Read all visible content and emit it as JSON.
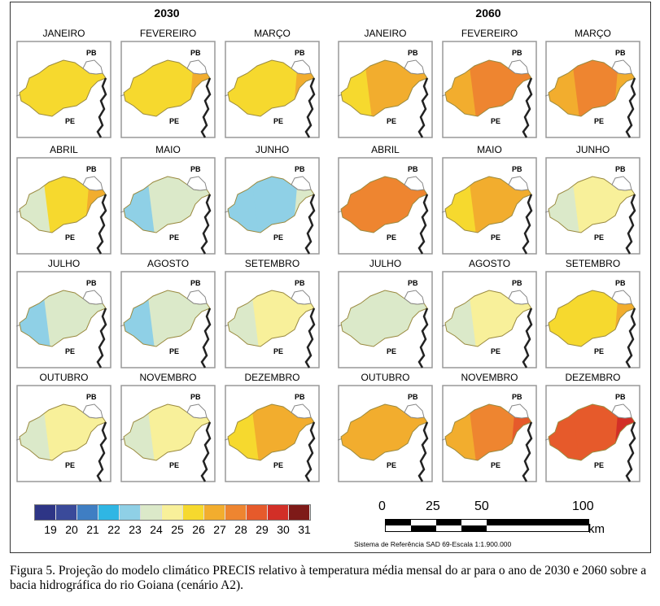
{
  "figure": {
    "years": [
      "2030",
      "2060"
    ],
    "region_labels": {
      "north": "PB",
      "south": "PE"
    },
    "months": [
      "JANEIRO",
      "FEVEREIRO",
      "MARÇO",
      "ABRIL",
      "MAIO",
      "JUNHO",
      "JULHO",
      "AGOSTO",
      "SETEMBRO",
      "OUTUBRO",
      "NOVEMBRO",
      "DEZEMBRO"
    ],
    "maps_2030": [
      {
        "base": 26,
        "west": 26,
        "east": 26
      },
      {
        "base": 26,
        "west": 26,
        "east": 27
      },
      {
        "base": 26,
        "west": 26,
        "east": 27
      },
      {
        "base": 26,
        "west": 24,
        "east": 27
      },
      {
        "base": 24,
        "west": 23,
        "east": 24
      },
      {
        "base": 23,
        "west": 23,
        "east": 24
      },
      {
        "base": 24,
        "west": 23,
        "east": 24
      },
      {
        "base": 24,
        "west": 23,
        "east": 24
      },
      {
        "base": 25,
        "west": 24,
        "east": 25
      },
      {
        "base": 25,
        "west": 24,
        "east": 25
      },
      {
        "base": 25,
        "west": 24,
        "east": 25
      },
      {
        "base": 27,
        "west": 26,
        "east": 27
      }
    ],
    "maps_2060": [
      {
        "base": 27,
        "west": 26,
        "east": 27
      },
      {
        "base": 28,
        "west": 27,
        "east": 28
      },
      {
        "base": 28,
        "west": 27,
        "east": 27
      },
      {
        "base": 28,
        "west": 28,
        "east": 28
      },
      {
        "base": 27,
        "west": 26,
        "east": 27
      },
      {
        "base": 25,
        "west": 24,
        "east": 25
      },
      {
        "base": 24,
        "west": 24,
        "east": 24
      },
      {
        "base": 25,
        "west": 24,
        "east": 25
      },
      {
        "base": 26,
        "west": 26,
        "east": 27
      },
      {
        "base": 27,
        "west": 27,
        "east": 27
      },
      {
        "base": 28,
        "west": 27,
        "east": 29
      },
      {
        "base": 29,
        "west": 29,
        "east": 30
      }
    ]
  },
  "legend": {
    "values": [
      "19",
      "20",
      "21",
      "22",
      "23",
      "24",
      "25",
      "26",
      "27",
      "28",
      "29",
      "30",
      "31"
    ],
    "colors": [
      "#2e3586",
      "#3a4a9a",
      "#3f7ec3",
      "#2fb6e4",
      "#8fd0e6",
      "#dbe9c9",
      "#f8f09a",
      "#f6d92e",
      "#f2ad2e",
      "#ee8530",
      "#e65a2b",
      "#d22f27",
      "#7e1a18"
    ]
  },
  "scale": {
    "labels": [
      "0",
      "25",
      "50",
      "100"
    ],
    "unit": "km",
    "reference": "Sistema de Referência SAD 69-Escala 1:1.900.000"
  },
  "caption": "Figura 5. Projeção do modelo climático PRECIS relativo à temperatura média mensal do ar para o ano de 2030 e 2060 sobre a bacia hidrográfica do rio Goiana (cenário A2)."
}
